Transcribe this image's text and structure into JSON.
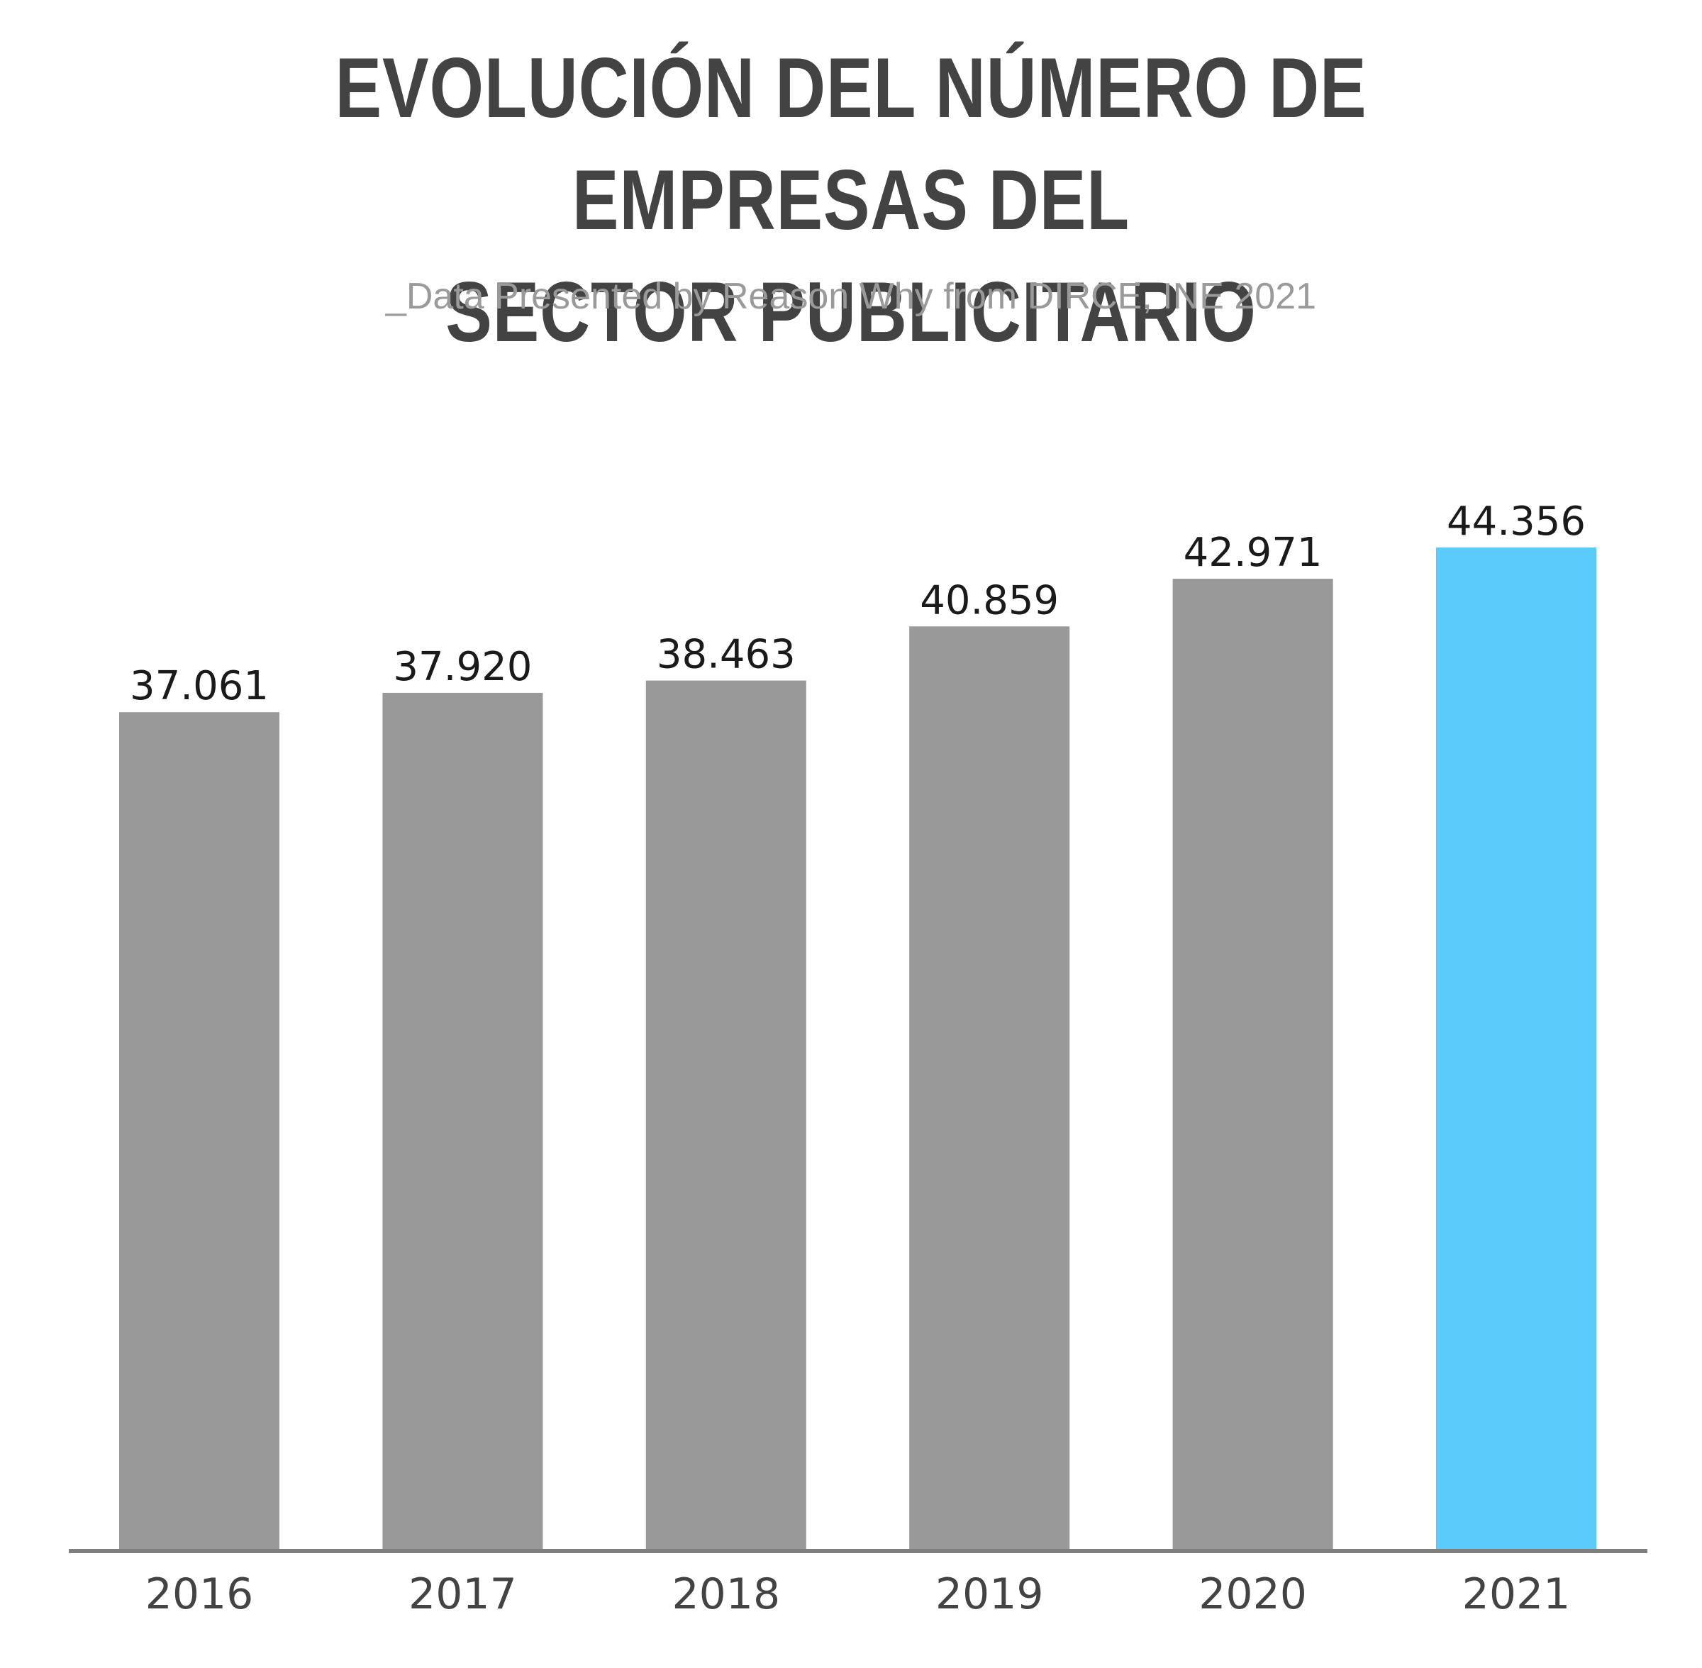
{
  "title_lines": [
    "EVOLUCIÓN DEL NÚMERO DE EMPRESAS DEL",
    "SECTOR PUBLICITARIO"
  ],
  "subtitle": "_Data Presented by Reason Why from DIRCE, INE 2021",
  "colors": {
    "bar": "#999999",
    "highlight": "#5bcbfc",
    "axis": "#7f7f7f"
  },
  "chart_data": {
    "type": "bar",
    "categories": [
      "2016",
      "2017",
      "2018",
      "2019",
      "2020",
      "2021"
    ],
    "values": [
      37061,
      37920,
      38463,
      40859,
      42971,
      44356
    ],
    "value_labels": [
      "37.061",
      "37.920",
      "38.463",
      "40.859",
      "42.971",
      "44.356"
    ],
    "highlight": "2021",
    "title": "EVOLUCIÓN DEL NÚMERO DE EMPRESAS DEL SECTOR PUBLICITARIO",
    "xlabel": "",
    "ylabel": "",
    "ylim": [
      0,
      44356
    ],
    "grid": false
  }
}
